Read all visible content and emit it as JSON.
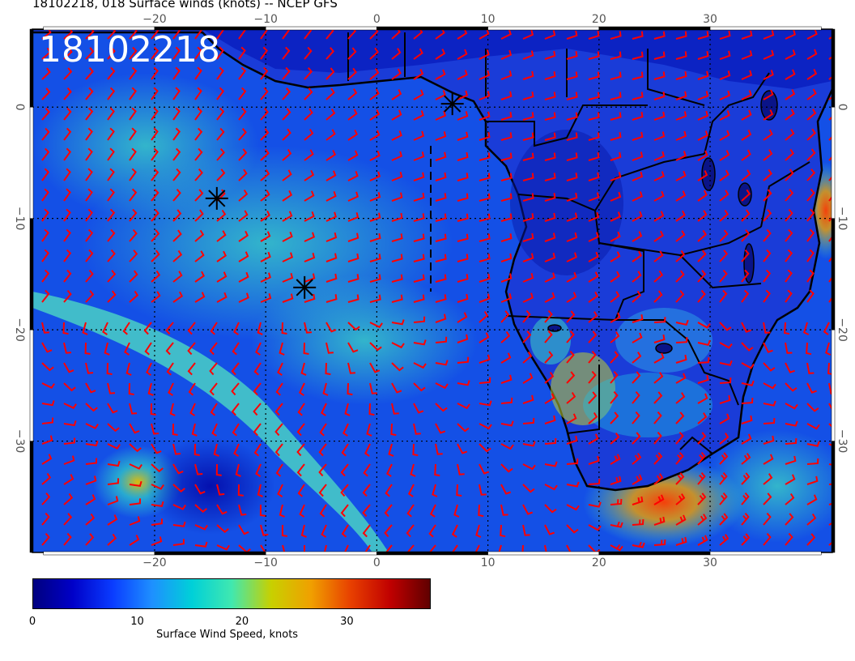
{
  "title": "18102218, 018 Surface winds (knots) -- NCEP GFS",
  "stamp": "18102218",
  "map": {
    "lon_range": [
      -31,
      41
    ],
    "lat_range": [
      -40,
      7
    ],
    "lon_ticks": [
      -20,
      -10,
      0,
      10,
      20,
      30
    ],
    "lat_ticks": [
      0,
      -10,
      -20,
      -30
    ],
    "lon_tick_labels": [
      "−20",
      "−10",
      "0",
      "10",
      "20",
      "30"
    ],
    "lat_tick_labels": [
      "0",
      "−10",
      "−20",
      "−30"
    ],
    "markers": [
      {
        "name": "storm-marker-1",
        "lon": 6.8,
        "lat": 0.3
      },
      {
        "name": "storm-marker-2",
        "lon": -14.4,
        "lat": -8.2
      },
      {
        "name": "storm-marker-3",
        "lon": -6.5,
        "lat": -16.2
      }
    ],
    "barb_color": "#ff0000",
    "coast_color": "#000000"
  },
  "colorbar": {
    "min": 0,
    "max": 38,
    "ticks": [
      "0",
      "10",
      "20",
      "30"
    ],
    "tick_values": [
      0,
      10,
      20,
      30
    ],
    "label": "Surface Wind Speed, knots",
    "colors": [
      "#00007f",
      "#0000c8",
      "#0a3cff",
      "#1e90ff",
      "#00d0d8",
      "#40e8b0",
      "#c8d000",
      "#f0a000",
      "#e84000",
      "#c00000",
      "#600000"
    ]
  }
}
